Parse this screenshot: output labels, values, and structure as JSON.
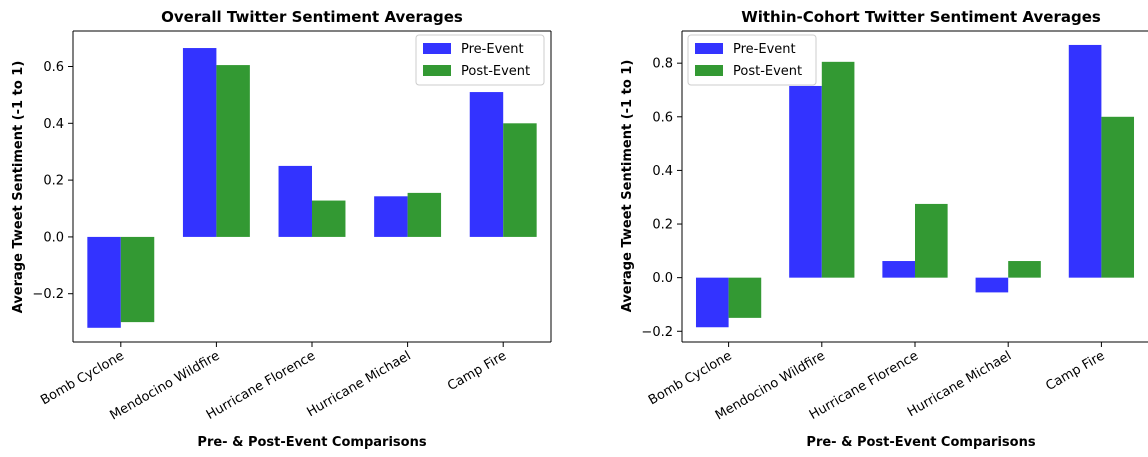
{
  "chart_data": [
    {
      "type": "bar",
      "title": "Overall Twitter Sentiment Averages",
      "xlabel": "Pre- & Post-Event Comparisons",
      "ylabel": "Average Tweet Sentiment (-1 to 1)",
      "categories": [
        "Bomb Cyclone",
        "Mendocino Wildfire",
        "Hurricane Florence",
        "Hurricane Michael",
        "Camp Fire"
      ],
      "series": [
        {
          "name": "Pre-Event",
          "color": "#3333ff",
          "values": [
            -0.32,
            0.665,
            0.25,
            0.143,
            0.51
          ]
        },
        {
          "name": "Post-Event",
          "color": "#339933",
          "values": [
            -0.3,
            0.605,
            0.128,
            0.155,
            0.4
          ]
        }
      ],
      "ylim": [
        -0.37,
        0.725
      ],
      "yticks": [
        -0.2,
        0.0,
        0.2,
        0.4,
        0.6
      ],
      "ytick_labels": [
        "−0.2",
        "0.0",
        "0.2",
        "0.4",
        "0.6"
      ],
      "legend_position": "top-right",
      "grid": false
    },
    {
      "type": "bar",
      "title": "Within-Cohort Twitter Sentiment Averages",
      "xlabel": "Pre- & Post-Event Comparisons",
      "ylabel": "Average Tweet Sentiment (-1 to 1)",
      "categories": [
        "Bomb Cyclone",
        "Mendocino Wildfire",
        "Hurricane Florence",
        "Hurricane Michael",
        "Camp Fire"
      ],
      "series": [
        {
          "name": "Pre-Event",
          "color": "#3333ff",
          "values": [
            -0.185,
            0.715,
            0.062,
            -0.055,
            0.868
          ]
        },
        {
          "name": "Post-Event",
          "color": "#339933",
          "values": [
            -0.15,
            0.805,
            0.275,
            0.062,
            0.6
          ]
        }
      ],
      "ylim": [
        -0.24,
        0.92
      ],
      "yticks": [
        -0.2,
        0.0,
        0.2,
        0.4,
        0.6,
        0.8
      ],
      "ytick_labels": [
        "−0.2",
        "0.0",
        "0.2",
        "0.4",
        "0.6",
        "0.8"
      ],
      "legend_position": "top-left",
      "grid": false
    }
  ]
}
